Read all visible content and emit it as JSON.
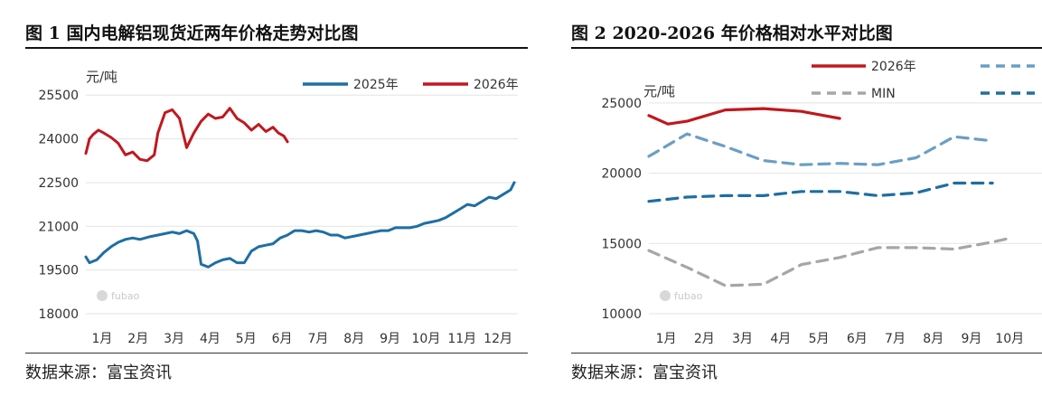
{
  "chart_data": [
    {
      "type": "line",
      "title": "图 1  国内电解铝现货近两年价格走势对比图",
      "ylabel": "元/吨",
      "ylim": [
        18000,
        26500
      ],
      "yticks": [
        18000,
        19500,
        21000,
        22500,
        24000,
        25500
      ],
      "categories": [
        "1月",
        "2月",
        "3月",
        "4月",
        "5月",
        "6月",
        "7月",
        "8月",
        "9月",
        "10月",
        "11月",
        "12月"
      ],
      "x_range_months": [
        0,
        12
      ],
      "legend_position": "top-right",
      "grid": "horizontal",
      "source": "数据来源：富宝资讯",
      "series": [
        {
          "name": "2025年",
          "color": "#1f6ea3",
          "points": [
            [
              0,
              19950
            ],
            [
              0.1,
              19750
            ],
            [
              0.3,
              19850
            ],
            [
              0.5,
              20100
            ],
            [
              0.7,
              20300
            ],
            [
              0.9,
              20450
            ],
            [
              1.1,
              20550
            ],
            [
              1.3,
              20600
            ],
            [
              1.5,
              20550
            ],
            [
              1.8,
              20650
            ],
            [
              2.0,
              20700
            ],
            [
              2.2,
              20750
            ],
            [
              2.4,
              20800
            ],
            [
              2.6,
              20750
            ],
            [
              2.8,
              20850
            ],
            [
              3.0,
              20750
            ],
            [
              3.1,
              20500
            ],
            [
              3.2,
              19700
            ],
            [
              3.4,
              19600
            ],
            [
              3.6,
              19750
            ],
            [
              3.8,
              19850
            ],
            [
              4.0,
              19900
            ],
            [
              4.2,
              19750
            ],
            [
              4.4,
              19750
            ],
            [
              4.6,
              20150
            ],
            [
              4.8,
              20300
            ],
            [
              5.0,
              20350
            ],
            [
              5.2,
              20400
            ],
            [
              5.4,
              20600
            ],
            [
              5.6,
              20700
            ],
            [
              5.8,
              20850
            ],
            [
              6.0,
              20850
            ],
            [
              6.2,
              20800
            ],
            [
              6.4,
              20850
            ],
            [
              6.6,
              20800
            ],
            [
              6.8,
              20700
            ],
            [
              7.0,
              20700
            ],
            [
              7.2,
              20600
            ],
            [
              7.4,
              20650
            ],
            [
              7.6,
              20700
            ],
            [
              7.8,
              20750
            ],
            [
              8.0,
              20800
            ],
            [
              8.2,
              20850
            ],
            [
              8.4,
              20850
            ],
            [
              8.6,
              20950
            ],
            [
              8.8,
              20950
            ],
            [
              9.0,
              20950
            ],
            [
              9.2,
              21000
            ],
            [
              9.4,
              21100
            ],
            [
              9.6,
              21150
            ],
            [
              9.8,
              21200
            ],
            [
              10.0,
              21300
            ],
            [
              10.2,
              21450
            ],
            [
              10.4,
              21600
            ],
            [
              10.6,
              21750
            ],
            [
              10.8,
              21700
            ],
            [
              11.0,
              21850
            ],
            [
              11.2,
              22000
            ],
            [
              11.4,
              21950
            ],
            [
              11.6,
              22100
            ],
            [
              11.8,
              22250
            ],
            [
              11.9,
              22500
            ]
          ]
        },
        {
          "name": "2026年",
          "color": "#c0181e",
          "points": [
            [
              0,
              23500
            ],
            [
              0.1,
              24000
            ],
            [
              0.2,
              24150
            ],
            [
              0.35,
              24300
            ],
            [
              0.5,
              24200
            ],
            [
              0.7,
              24050
            ],
            [
              0.9,
              23850
            ],
            [
              1.1,
              23450
            ],
            [
              1.3,
              23550
            ],
            [
              1.5,
              23300
            ],
            [
              1.7,
              23250
            ],
            [
              1.9,
              23450
            ],
            [
              2.0,
              24200
            ],
            [
              2.2,
              24900
            ],
            [
              2.4,
              25000
            ],
            [
              2.6,
              24700
            ],
            [
              2.8,
              23700
            ],
            [
              3.0,
              24200
            ],
            [
              3.2,
              24600
            ],
            [
              3.4,
              24850
            ],
            [
              3.6,
              24700
            ],
            [
              3.8,
              24750
            ],
            [
              4.0,
              25050
            ],
            [
              4.2,
              24700
            ],
            [
              4.4,
              24550
            ],
            [
              4.6,
              24300
            ],
            [
              4.8,
              24500
            ],
            [
              5.0,
              24250
            ],
            [
              5.2,
              24400
            ],
            [
              5.35,
              24200
            ],
            [
              5.5,
              24100
            ],
            [
              5.6,
              23900
            ]
          ]
        }
      ]
    },
    {
      "type": "line",
      "title": "图 2  2020-2026 年价格相对水平对比图",
      "ylabel": "元/吨",
      "ylim": [
        10000,
        27500
      ],
      "yticks": [
        10000,
        15000,
        20000,
        25000
      ],
      "categories": [
        "1月",
        "2月",
        "3月",
        "4月",
        "5月",
        "6月",
        "7月",
        "8月",
        "9月",
        "10月"
      ],
      "x_range_months": [
        0,
        10.3
      ],
      "legend_position": "top",
      "grid": "horizontal",
      "source": "数据来源：富宝资讯",
      "series": [
        {
          "name": "2026年",
          "color": "#c0181e",
          "dash": "solid",
          "points": [
            [
              0,
              24100
            ],
            [
              0.5,
              23500
            ],
            [
              1,
              23700
            ],
            [
              2,
              24500
            ],
            [
              3,
              24600
            ],
            [
              4,
              24400
            ],
            [
              5,
              23900
            ]
          ]
        },
        {
          "name": "",
          "color": "#6a9fc4",
          "dash": "dashed",
          "points": [
            [
              0,
              21200
            ],
            [
              1,
              22800
            ],
            [
              2,
              21900
            ],
            [
              3,
              20900
            ],
            [
              4,
              20600
            ],
            [
              5,
              20700
            ],
            [
              6,
              20600
            ],
            [
              7,
              21100
            ],
            [
              8,
              22600
            ],
            [
              9,
              22300
            ]
          ]
        },
        {
          "name": "",
          "color": "#1f6ea3",
          "dash": "dashed",
          "points": [
            [
              0,
              18000
            ],
            [
              1,
              18300
            ],
            [
              2,
              18400
            ],
            [
              3,
              18400
            ],
            [
              4,
              18700
            ],
            [
              5,
              18700
            ],
            [
              6,
              18400
            ],
            [
              7,
              18600
            ],
            [
              8,
              19300
            ],
            [
              9,
              19300
            ]
          ]
        },
        {
          "name": "MIN",
          "color": "#a6a6a6",
          "dash": "dashed",
          "points": [
            [
              0,
              14500
            ],
            [
              1,
              13300
            ],
            [
              2,
              12000
            ],
            [
              3,
              12100
            ],
            [
              4,
              13500
            ],
            [
              5,
              14000
            ],
            [
              6,
              14700
            ],
            [
              7,
              14700
            ],
            [
              8,
              14600
            ],
            [
              9,
              15100
            ],
            [
              9.5,
              15400
            ]
          ]
        }
      ]
    }
  ]
}
